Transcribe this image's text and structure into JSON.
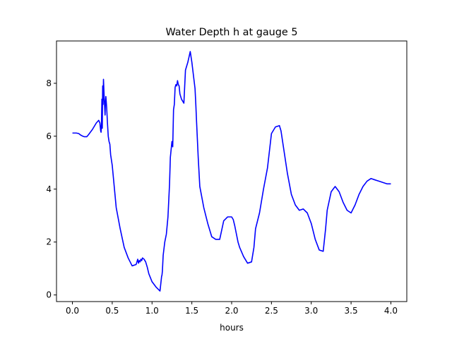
{
  "chart_data": {
    "type": "line",
    "title": "Water Depth h at gauge 5",
    "xlabel": "hours",
    "ylabel": "",
    "xlim": [
      -0.2,
      4.2
    ],
    "ylim": [
      -0.25,
      9.6
    ],
    "xticks": [
      0.0,
      0.5,
      1.0,
      1.5,
      2.0,
      2.5,
      3.0,
      3.5,
      4.0
    ],
    "xtick_labels": [
      "0.0",
      "0.5",
      "1.0",
      "1.5",
      "2.0",
      "2.5",
      "3.0",
      "3.5",
      "4.0"
    ],
    "yticks": [
      0,
      2,
      4,
      6,
      8
    ],
    "ytick_labels": [
      "0",
      "2",
      "4",
      "6",
      "8"
    ],
    "grid": false,
    "series": [
      {
        "color": "#0000ff",
        "x": [
          0.0,
          0.05,
          0.08,
          0.1,
          0.13,
          0.15,
          0.18,
          0.2,
          0.25,
          0.3,
          0.33,
          0.345,
          0.355,
          0.36,
          0.365,
          0.37,
          0.375,
          0.38,
          0.385,
          0.39,
          0.4,
          0.41,
          0.415,
          0.42,
          0.43,
          0.44,
          0.45,
          0.46,
          0.47,
          0.48,
          0.5,
          0.55,
          0.6,
          0.65,
          0.7,
          0.75,
          0.8,
          0.82,
          0.83,
          0.84,
          0.85,
          0.86,
          0.87,
          0.88,
          0.9,
          0.92,
          0.94,
          0.96,
          1.0,
          1.05,
          1.1,
          1.12,
          1.125,
          1.13,
          1.14,
          1.16,
          1.18,
          1.2,
          1.22,
          1.23,
          1.24,
          1.25,
          1.26,
          1.27,
          1.28,
          1.29,
          1.3,
          1.31,
          1.32,
          1.33,
          1.34,
          1.35,
          1.36,
          1.37,
          1.38,
          1.4,
          1.42,
          1.45,
          1.48,
          1.5,
          1.52,
          1.54,
          1.55,
          1.56,
          1.58,
          1.6,
          1.65,
          1.7,
          1.75,
          1.8,
          1.85,
          1.9,
          1.95,
          2.0,
          2.02,
          2.04,
          2.06,
          2.08,
          2.1,
          2.15,
          2.2,
          2.25,
          2.28,
          2.3,
          2.35,
          2.4,
          2.45,
          2.5,
          2.55,
          2.6,
          2.62,
          2.65,
          2.7,
          2.75,
          2.8,
          2.85,
          2.9,
          2.95,
          3.0,
          3.05,
          3.1,
          3.15,
          3.18,
          3.2,
          3.25,
          3.3,
          3.35,
          3.4,
          3.45,
          3.5,
          3.55,
          3.6,
          3.65,
          3.7,
          3.75,
          3.8,
          3.85,
          3.9,
          3.95,
          4.0
        ],
        "y": [
          6.12,
          6.12,
          6.1,
          6.05,
          6.0,
          5.98,
          5.98,
          6.05,
          6.25,
          6.5,
          6.6,
          6.5,
          6.2,
          6.15,
          6.5,
          7.4,
          6.3,
          7.9,
          7.2,
          8.15,
          7.4,
          6.8,
          7.3,
          7.5,
          7.1,
          6.5,
          6.0,
          5.8,
          5.7,
          5.3,
          4.9,
          3.3,
          2.5,
          1.8,
          1.4,
          1.1,
          1.15,
          1.35,
          1.2,
          1.3,
          1.25,
          1.35,
          1.3,
          1.4,
          1.35,
          1.25,
          1.05,
          0.8,
          0.5,
          0.3,
          0.15,
          0.7,
          0.75,
          0.9,
          1.5,
          2.0,
          2.3,
          2.95,
          4.2,
          5.2,
          5.5,
          5.8,
          5.6,
          7.0,
          7.2,
          7.85,
          7.95,
          7.9,
          8.1,
          7.95,
          7.9,
          7.6,
          7.5,
          7.4,
          7.35,
          7.25,
          8.5,
          8.8,
          9.2,
          8.8,
          8.3,
          7.8,
          7.2,
          6.5,
          5.2,
          4.1,
          3.3,
          2.7,
          2.2,
          2.1,
          2.1,
          2.8,
          2.95,
          2.95,
          2.85,
          2.6,
          2.3,
          2.0,
          1.8,
          1.45,
          1.2,
          1.25,
          1.8,
          2.5,
          3.1,
          4.0,
          4.8,
          6.1,
          6.35,
          6.4,
          6.2,
          5.6,
          4.6,
          3.8,
          3.4,
          3.2,
          3.25,
          3.1,
          2.7,
          2.1,
          1.7,
          1.65,
          2.5,
          3.2,
          3.9,
          4.1,
          3.9,
          3.5,
          3.2,
          3.1,
          3.4,
          3.8,
          4.1,
          4.3,
          4.4,
          4.35,
          4.3,
          4.25,
          4.2,
          4.2
        ]
      }
    ]
  }
}
